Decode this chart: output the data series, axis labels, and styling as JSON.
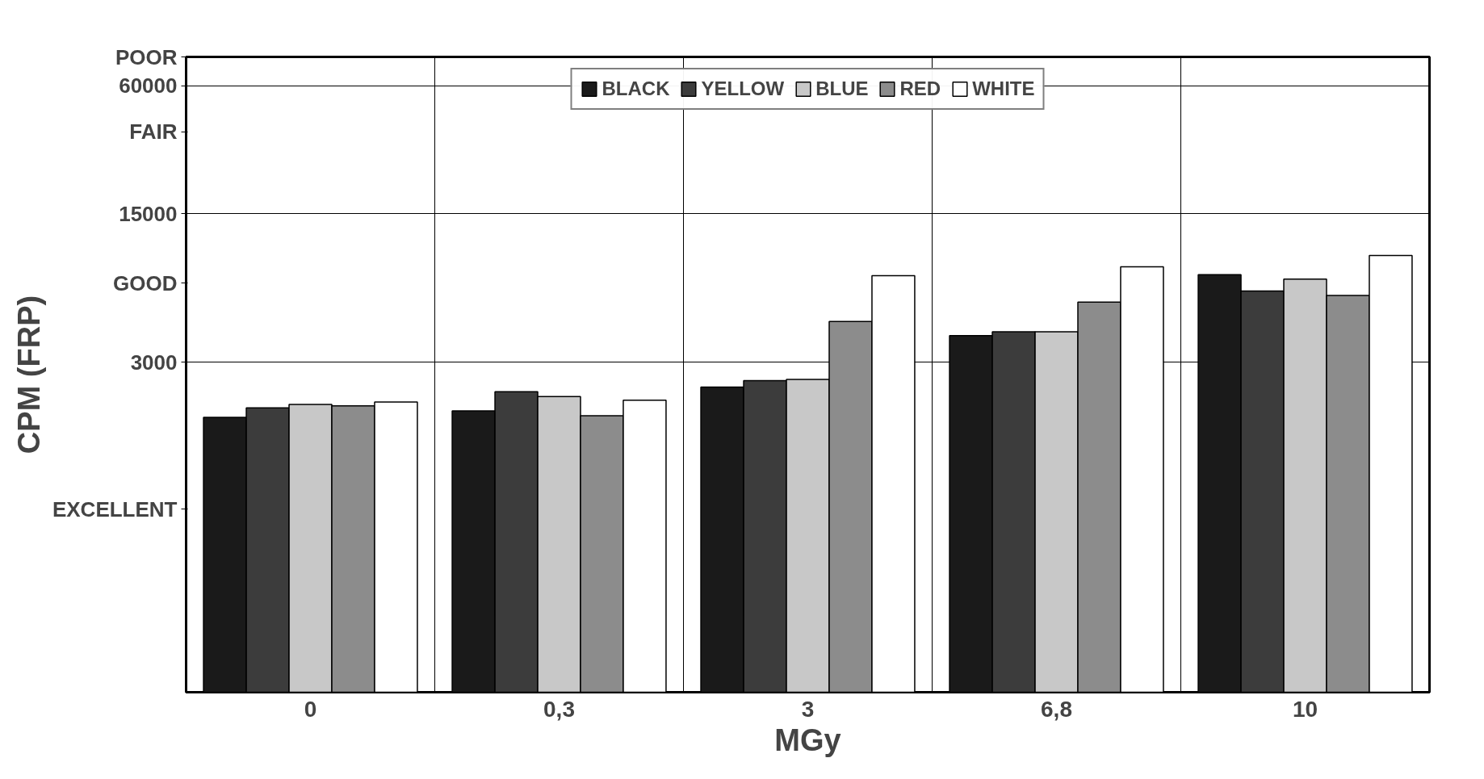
{
  "chart_data": {
    "type": "bar",
    "xlabel": "MGy",
    "ylabel": "CPM (FRP)",
    "categories": [
      "0",
      "0,3",
      "3",
      "6,8",
      "10"
    ],
    "series": [
      {
        "name": "BLACK",
        "color": "#1a1a1a",
        "values": [
          1650,
          1770,
          2290,
          4000,
          7750
        ]
      },
      {
        "name": "YELLOW",
        "color": "#3c3c3c",
        "values": [
          1830,
          2180,
          2460,
          4170,
          6490
        ]
      },
      {
        "name": "BLUE",
        "color": "#c8c8c8",
        "values": [
          1900,
          2070,
          2490,
          4170,
          7380
        ]
      },
      {
        "name": "RED",
        "color": "#8c8c8c",
        "values": [
          1870,
          1680,
          4660,
          5750,
          6180
        ]
      },
      {
        "name": "WHITE",
        "color": "#ffffff",
        "values": [
          1950,
          1990,
          7660,
          8430,
          9540
        ]
      }
    ],
    "log": true,
    "ylim": [
      84,
      82000
    ],
    "yticks": [
      {
        "value": 611,
        "label": "EXCELLENT"
      },
      3000,
      {
        "value": 7070,
        "label": "GOOD"
      },
      15000,
      {
        "value": 36500,
        "label": "FAIR"
      },
      60000,
      {
        "value": 82000,
        "label": "POOR"
      }
    ],
    "grid": true,
    "legend": "top"
  }
}
